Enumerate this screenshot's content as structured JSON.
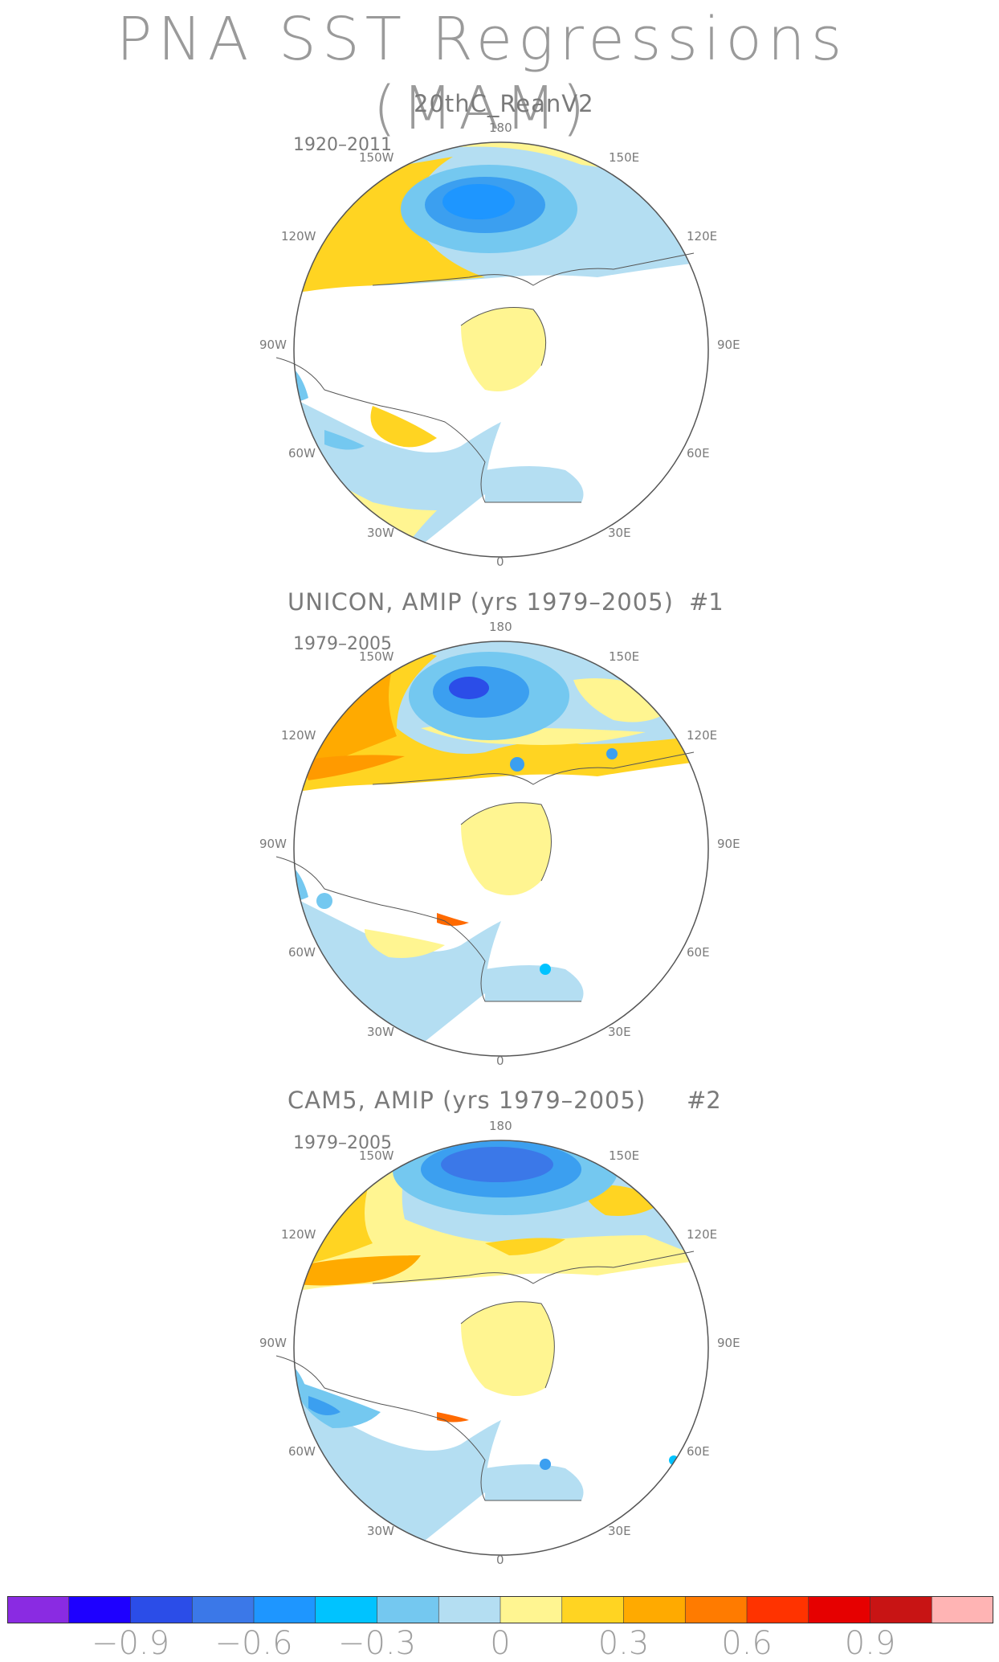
{
  "title": "PNA SST Regressions (MAM)",
  "panels": [
    {
      "id": "p1",
      "title": "20thC_ReanV2",
      "period": "1920–2011",
      "number": "",
      "lon_labels": {
        "n": "180",
        "nw": "150W",
        "ne": "150E",
        "wnw": "120W",
        "ene": "120E",
        "w": "90W",
        "e": "90E",
        "wsw": "60W",
        "ese": "60E",
        "sw": "30W",
        "se": "30E",
        "s": "0"
      }
    },
    {
      "id": "p2",
      "title": "UNICON, AMIP (yrs 1979–2005)",
      "period": "1979–2005",
      "number": "#1",
      "lon_labels": {
        "n": "180",
        "nw": "150W",
        "ne": "150E",
        "wnw": "120W",
        "ene": "120E",
        "w": "90W",
        "e": "90E",
        "wsw": "60W",
        "ese": "60E",
        "sw": "30W",
        "se": "30E",
        "s": "0"
      }
    },
    {
      "id": "p3",
      "title": "CAM5, AMIP (yrs 1979–2005)",
      "period": "1979–2005",
      "number": "#2",
      "lon_labels": {
        "n": "180",
        "nw": "150W",
        "ne": "150E",
        "wnw": "120W",
        "ene": "120E",
        "w": "90W",
        "e": "90E",
        "wsw": "60W",
        "ese": "60E",
        "sw": "30W",
        "se": "30E",
        "s": "0"
      }
    }
  ],
  "colorbar": {
    "colors": [
      "#8a2be2",
      "#1e00ff",
      "#2b4de8",
      "#3b78e8",
      "#1e96ff",
      "#00c3ff",
      "#74c8f0",
      "#b4def2",
      "#fff591",
      "#ffd422",
      "#ffaa00",
      "#ff7b00",
      "#ff3300",
      "#e60000",
      "#c81414",
      "#ffb4b4"
    ],
    "labels": [
      "−0.9",
      "−0.6",
      "−0.3",
      "0",
      "0.3",
      "0.6",
      "0.9"
    ]
  },
  "colors": {
    "land": "#ffffff",
    "coast": "#555555",
    "light_blue": "#b4def2",
    "mid_blue": "#74c8f0",
    "blue": "#3b9ff0",
    "deep_blue": "#1e7fff",
    "light_yellow": "#fff591",
    "yellow": "#ffd422",
    "orange": "#ffaa00",
    "red_orange": "#ff6a00"
  }
}
